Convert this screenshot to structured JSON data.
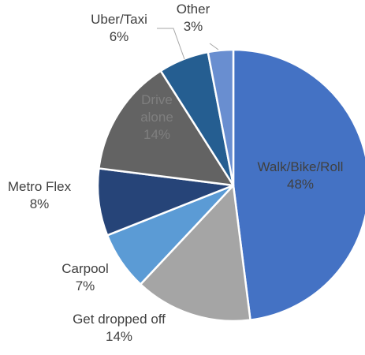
{
  "chart_data": {
    "type": "pie",
    "title": "",
    "start_angle_deg": 0,
    "direction": "clockwise",
    "slices": [
      {
        "label": "Walk/Bike/Roll",
        "value": 48,
        "value_label": "48%",
        "color": "#4472C4",
        "label_color": "#404040",
        "label_position": "inside"
      },
      {
        "label": "Get dropped off",
        "value": 14,
        "value_label": "14%",
        "color": "#A5A5A5",
        "label_color": "#404040",
        "label_position": "outside"
      },
      {
        "label": "Carpool",
        "value": 7,
        "value_label": "7%",
        "color": "#5B9BD5",
        "label_color": "#404040",
        "label_position": "outside"
      },
      {
        "label": "Metro Flex",
        "value": 8,
        "value_label": "8%",
        "color": "#264478",
        "label_color": "#404040",
        "label_position": "outside"
      },
      {
        "label": "Drive alone",
        "value": 14,
        "value_label": "14%",
        "color": "#636363",
        "label_color": "#7F7F7F",
        "label_position": "inside"
      },
      {
        "label": "Uber/Taxi",
        "value": 6,
        "value_label": "6%",
        "color": "#255E91",
        "label_color": "#404040",
        "label_position": "outside"
      },
      {
        "label": "Other",
        "value": 3,
        "value_label": "3%",
        "color": "#698ED0",
        "label_color": "#404040",
        "label_position": "outside"
      }
    ]
  }
}
